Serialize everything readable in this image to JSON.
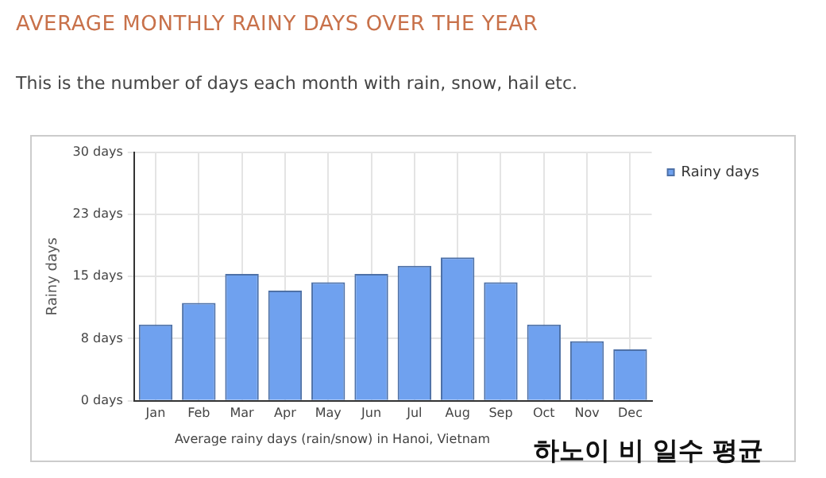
{
  "chart_data": {
    "type": "bar",
    "title": "AVERAGE MONTHLY RAINY DAYS OVER THE YEAR",
    "subtitle": "This is the number of days each month with rain, snow, hail etc.",
    "ylabel": "Rainy days",
    "categories": [
      "Jan",
      "Feb",
      "Mar",
      "Apr",
      "May",
      "Jun",
      "Jul",
      "Aug",
      "Sep",
      "Oct",
      "Nov",
      "Dec"
    ],
    "series": [
      {
        "name": "Rainy days",
        "color": "#6fa1ef",
        "values": [
          9.2,
          11.8,
          15.3,
          13.3,
          14.3,
          15.3,
          16.3,
          17.3,
          14.3,
          9.2,
          7.2,
          6.2
        ]
      }
    ],
    "ylim": [
      0,
      30
    ],
    "yticks": [
      {
        "value": 0,
        "label": "0 days"
      },
      {
        "value": 7.5,
        "label": "8 days"
      },
      {
        "value": 15,
        "label": "15 days"
      },
      {
        "value": 22.5,
        "label": "23 days"
      },
      {
        "value": 30,
        "label": "30 days"
      }
    ],
    "grid": true,
    "legend": "top right",
    "annotations": [
      "Average rainy days (rain/snow) in Hanoi, Vietnam",
      "하노이 비 일수 평균"
    ]
  }
}
